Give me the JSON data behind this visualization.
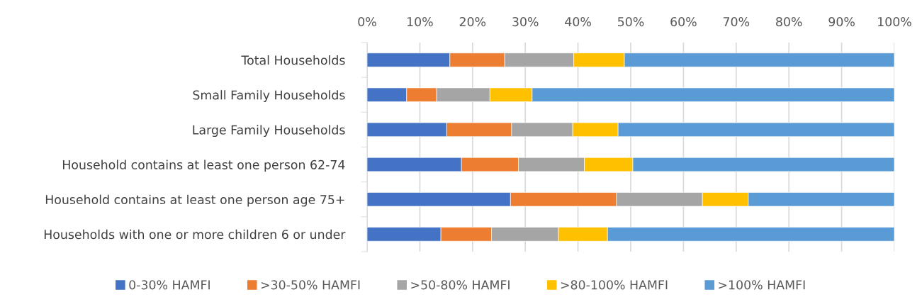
{
  "chart_data": {
    "type": "bar",
    "orientation": "horizontal",
    "stacked": true,
    "categories": [
      "Total Households",
      "Small Family Households",
      "Large Family Households",
      "Household contains at least one person 62-74",
      "Household contains at least one person age 75+",
      "Households with one or more children 6 or under"
    ],
    "series": [
      {
        "name": "0-30% HAMFI",
        "color": "#4472c4",
        "values": [
          15.7,
          7.5,
          15.1,
          17.9,
          27.2,
          14.0
        ]
      },
      {
        "name": ">30-50% HAMFI",
        "color": "#ed7d31",
        "values": [
          10.4,
          5.7,
          12.3,
          10.8,
          20.1,
          9.6
        ]
      },
      {
        "name": ">50-80% HAMFI",
        "color": "#a5a5a5",
        "values": [
          13.1,
          10.1,
          11.6,
          12.5,
          16.3,
          12.7
        ]
      },
      {
        "name": ">80-100% HAMFI",
        "color": "#ffc000",
        "values": [
          9.6,
          8.0,
          8.6,
          9.2,
          8.7,
          9.3
        ]
      },
      {
        "name": ">100% HAMFI",
        "color": "#5b9bd5",
        "values": [
          51.2,
          68.7,
          52.4,
          49.6,
          27.7,
          54.4
        ]
      }
    ],
    "xlim": [
      0,
      100
    ],
    "xticks": [
      {
        "value": 0,
        "label": "0%"
      },
      {
        "value": 10,
        "label": "10%"
      },
      {
        "value": 20,
        "label": "20%"
      },
      {
        "value": 30,
        "label": "30%"
      },
      {
        "value": 40,
        "label": "40%"
      },
      {
        "value": 50,
        "label": "50%"
      },
      {
        "value": 60,
        "label": "60%"
      },
      {
        "value": 70,
        "label": "70%"
      },
      {
        "value": 80,
        "label": "80%"
      },
      {
        "value": 90,
        "label": "90%"
      },
      {
        "value": 100,
        "label": "100%"
      }
    ],
    "grid": "x",
    "legend": "bottom"
  }
}
